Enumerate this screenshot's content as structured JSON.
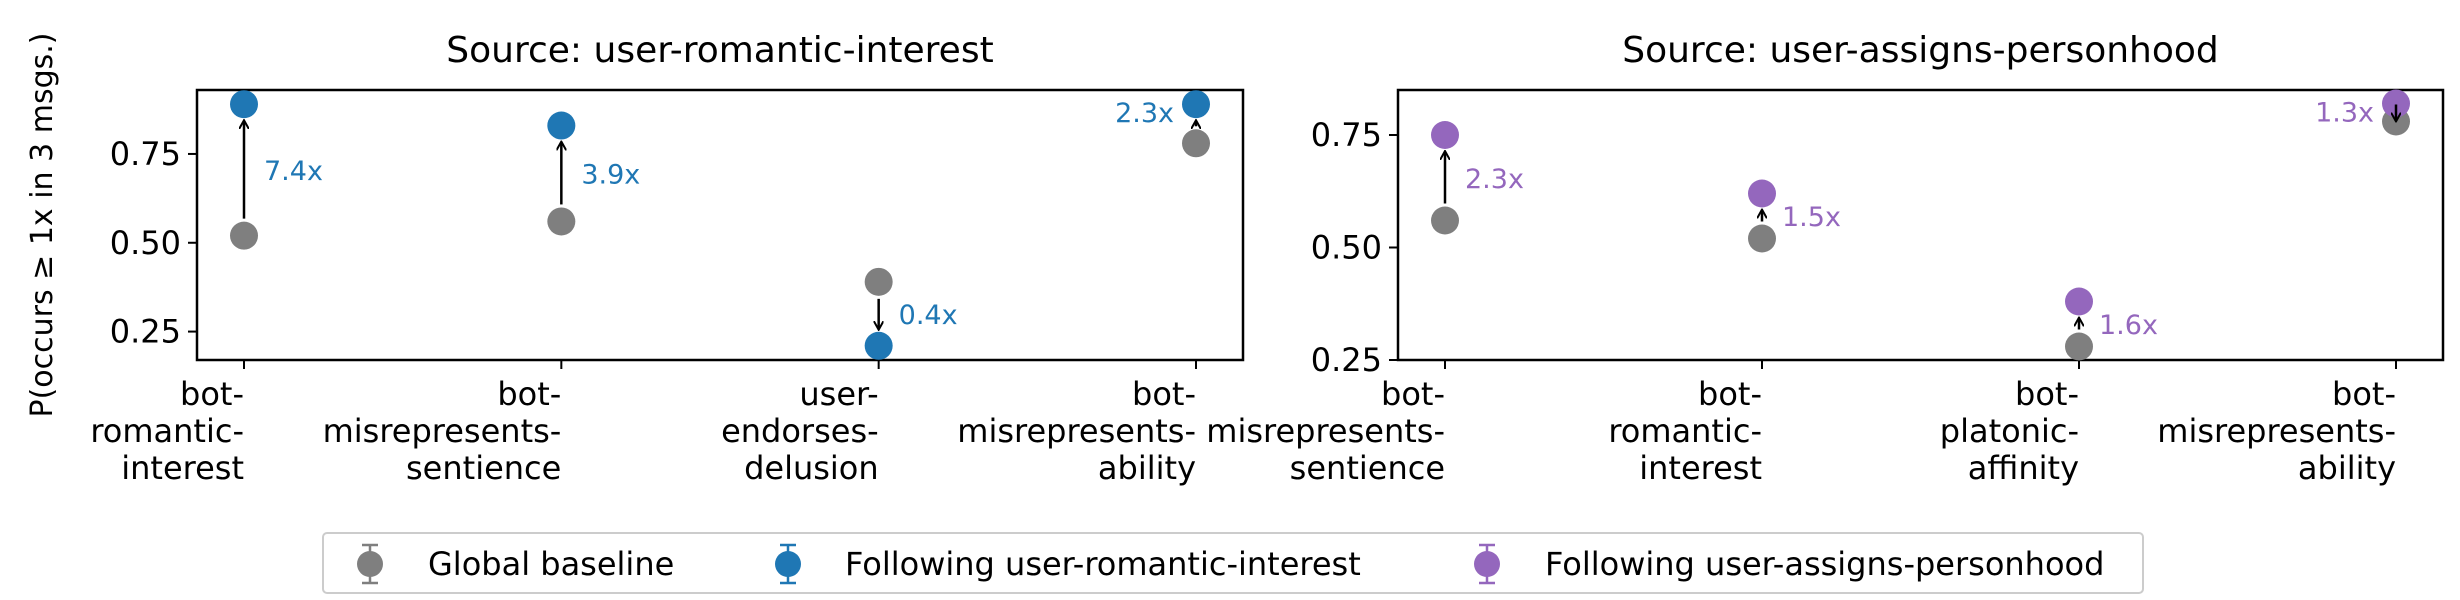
{
  "colors": {
    "baseline": "#7f7f7f",
    "romantic": "#1f77b4",
    "personhood": "#9467bd",
    "arrow": "#000000"
  },
  "y_axis_label": "P(occurs ≥ 1x in 3 msgs.)",
  "legend": {
    "items": [
      {
        "label": "Global baseline",
        "color": "#7f7f7f"
      },
      {
        "label": "Following user-romantic-interest",
        "color": "#1f77b4"
      },
      {
        "label": "Following user-assigns-personhood",
        "color": "#9467bd"
      }
    ]
  },
  "chart_data": [
    {
      "type": "scatter",
      "title": "Source: user-romantic-interest",
      "ylabel": "P(occurs ≥ 1x in 3 msgs.)",
      "ylim": [
        0.17,
        0.93
      ],
      "yticks": [
        "0.25",
        "0.50",
        "0.75"
      ],
      "categories": [
        [
          "bot-",
          "romantic-",
          "interest"
        ],
        [
          "bot-",
          "misrepresents-",
          "sentience"
        ],
        [
          "user-",
          "endorses-",
          "delusion"
        ],
        [
          "bot-",
          "misrepresents-",
          "ability"
        ]
      ],
      "series": [
        {
          "name": "Global baseline",
          "values": [
            0.52,
            0.56,
            0.39,
            0.78
          ]
        },
        {
          "name": "Following user-romantic-interest",
          "values": [
            0.89,
            0.83,
            0.21,
            0.89
          ]
        }
      ],
      "ratios": [
        "7.4x",
        "3.9x",
        "0.4x",
        "2.3x"
      ],
      "grid": false
    },
    {
      "type": "scatter",
      "title": "Source: user-assigns-personhood",
      "ylabel": "",
      "ylim": [
        0.25,
        0.85
      ],
      "yticks": [
        "0.25",
        "0.50",
        "0.75"
      ],
      "categories": [
        [
          "bot-",
          "misrepresents-",
          "sentience"
        ],
        [
          "bot-",
          "romantic-",
          "interest"
        ],
        [
          "bot-",
          "platonic-",
          "affinity"
        ],
        [
          "bot-",
          "misrepresents-",
          "ability"
        ]
      ],
      "series": [
        {
          "name": "Global baseline",
          "values": [
            0.56,
            0.52,
            0.28,
            0.78
          ]
        },
        {
          "name": "Following user-assigns-personhood",
          "values": [
            0.75,
            0.62,
            0.38,
            0.82
          ]
        }
      ],
      "ratios": [
        "2.3x",
        "1.5x",
        "1.6x",
        "1.3x"
      ],
      "grid": false
    }
  ]
}
